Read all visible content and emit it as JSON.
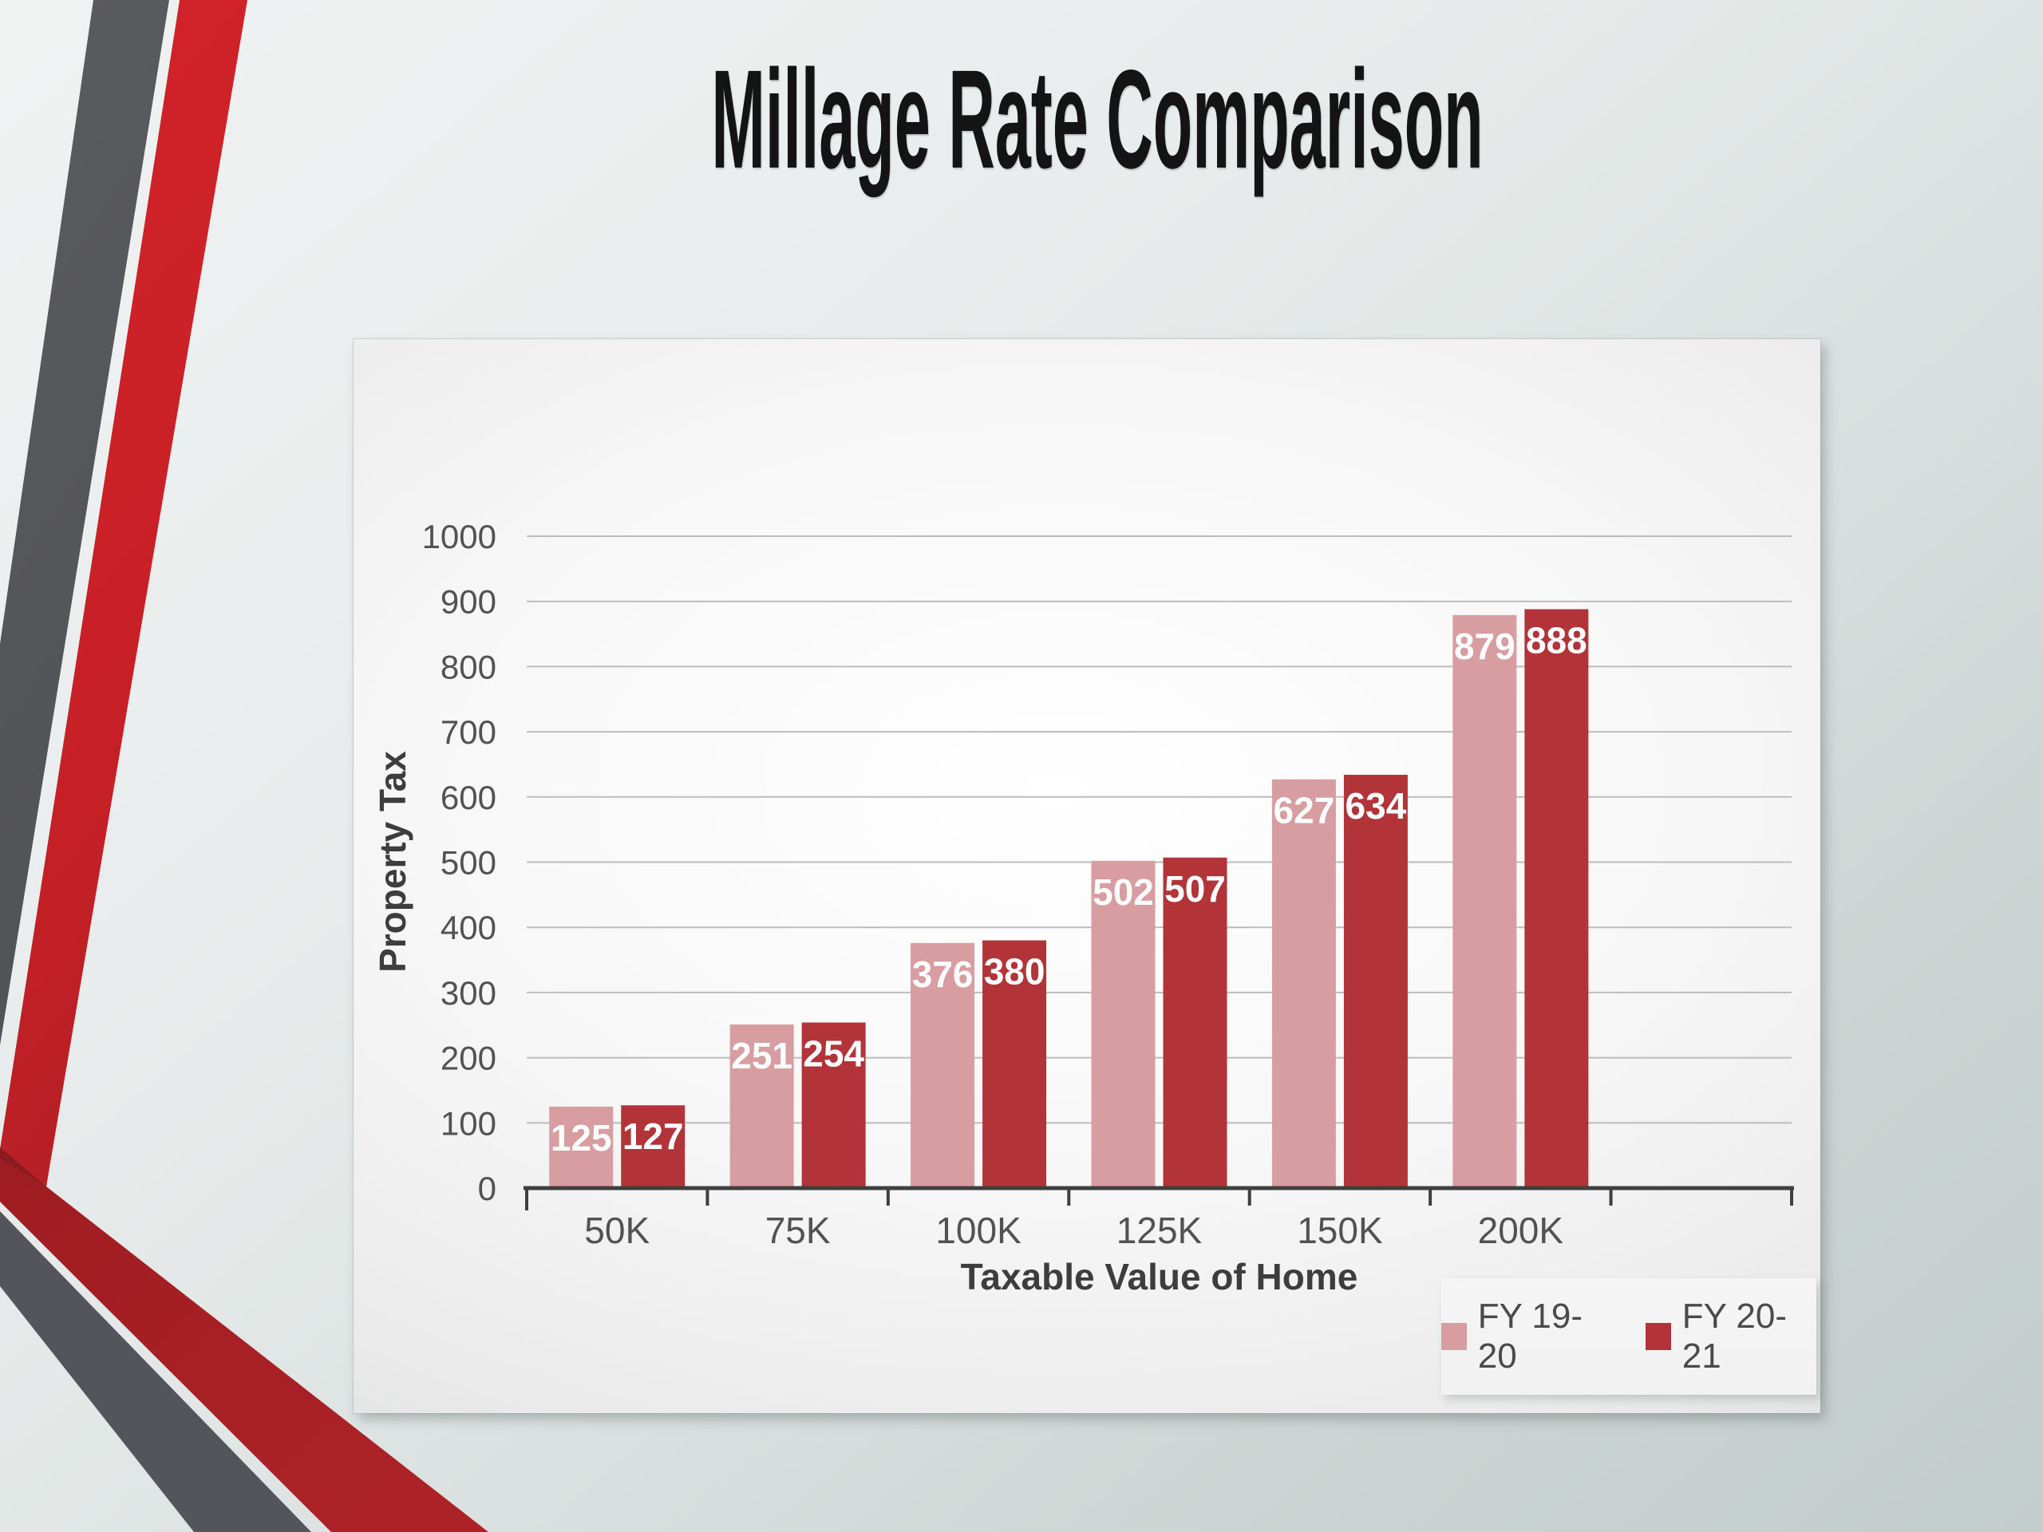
{
  "slide": {
    "title": "Millage Rate Comparison",
    "background_top_color": "#eff1f1",
    "background_bottom_color": "#c6cfcd"
  },
  "decor": {
    "stripe_gray_color": "#58595c",
    "stripe_red_color": "#cc2127",
    "stripe_dark_red_color": "#a52126",
    "stripe_fold_color": "#8c1b20"
  },
  "chart_data": {
    "type": "bar",
    "title": "Millage Rate Comparison",
    "categories": [
      "50K",
      "75K",
      "100K",
      "125K",
      "150K",
      "200K"
    ],
    "series": [
      {
        "name": "FY 19-20",
        "color": "#d89da0",
        "values": [
          125,
          251,
          376,
          502,
          627,
          879
        ]
      },
      {
        "name": "FY 20-21",
        "color": "#b33438",
        "values": [
          127,
          254,
          380,
          507,
          634,
          888
        ]
      }
    ],
    "xlabel": "Taxable Value of Home",
    "ylabel": "Property Tax",
    "ylim": [
      0,
      1000
    ],
    "ytick_step": 100,
    "yticks": [
      0,
      100,
      200,
      300,
      400,
      500,
      600,
      700,
      800,
      900,
      1000
    ],
    "grid": true,
    "legend_position": "bottom-right",
    "empty_trailing_slots": 1,
    "bar_label_color": "#ffffff",
    "gridline_color": "#bcbcbc",
    "axis_color": "#3f3f3f",
    "tick_label_color": "#525252",
    "axis_title_color": "#3d3d3d"
  }
}
